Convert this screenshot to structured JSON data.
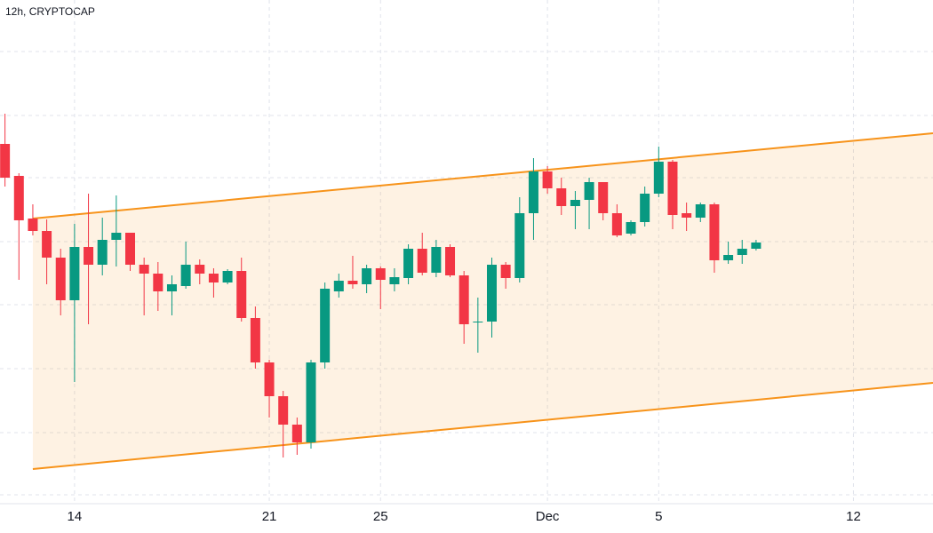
{
  "chart_data": {
    "type": "candlestick",
    "title": "12h, CRYPTOCAP",
    "x": [
      11.5,
      12,
      12.5,
      13,
      13.5,
      14,
      14.5,
      15,
      15.5,
      16,
      16.5,
      17,
      17.5,
      18,
      18.5,
      19,
      19.5,
      20,
      20.5,
      21,
      21.5,
      22,
      22.5,
      23,
      23.5,
      24,
      24.5,
      25,
      25.5,
      26,
      26.5,
      27,
      27.5,
      28,
      28.5,
      29,
      29.5,
      30,
      30.5,
      31,
      31.5,
      32,
      32.5,
      33,
      33.5,
      34,
      34.5,
      35,
      35.5,
      36,
      36.5,
      37,
      37.5,
      38,
      38.5
    ],
    "open": [
      438,
      402,
      354,
      340,
      310,
      262,
      322,
      302,
      330,
      338,
      302,
      292,
      272,
      278,
      302,
      292,
      282,
      295,
      242,
      192,
      154,
      122,
      102,
      192,
      272,
      284,
      280,
      298,
      280,
      287,
      320,
      293,
      322,
      290,
      237,
      238,
      302,
      287,
      360,
      407,
      388,
      368,
      375,
      395,
      360,
      337,
      350,
      382,
      418,
      360,
      355,
      370,
      307,
      313,
      320
    ],
    "high": [
      472,
      405,
      370,
      353,
      320,
      348,
      382,
      355,
      380,
      338,
      310,
      305,
      290,
      328,
      308,
      298,
      297,
      310,
      255,
      195,
      160,
      130,
      195,
      282,
      292,
      312,
      302,
      300,
      298,
      325,
      338,
      330,
      325,
      295,
      265,
      310,
      305,
      378,
      422,
      413,
      400,
      385,
      400,
      395,
      370,
      352,
      390,
      435,
      420,
      372,
      372,
      372,
      328,
      330,
      330
    ],
    "low": [
      390,
      285,
      335,
      280,
      245,
      170,
      235,
      290,
      300,
      295,
      245,
      250,
      245,
      275,
      280,
      265,
      280,
      238,
      185,
      130,
      85,
      88,
      95,
      185,
      265,
      275,
      270,
      252,
      272,
      280,
      290,
      288,
      288,
      213,
      203,
      220,
      275,
      282,
      330,
      382,
      358,
      342,
      342,
      352,
      333,
      335,
      345,
      378,
      342,
      340,
      350,
      293,
      303,
      303,
      318
    ],
    "close": [
      400,
      352,
      340,
      310,
      262,
      322,
      302,
      330,
      338,
      302,
      292,
      272,
      280,
      302,
      292,
      282,
      295,
      242,
      192,
      154,
      122,
      102,
      192,
      275,
      284,
      280,
      298,
      285,
      288,
      320,
      293,
      322,
      290,
      235,
      238,
      302,
      287,
      360,
      407,
      388,
      368,
      375,
      395,
      360,
      335,
      350,
      382,
      418,
      358,
      355,
      370,
      307,
      313,
      320,
      327
    ],
    "up_color": "#089981",
    "down_color": "#f23645",
    "channel": {
      "x": [
        12.5,
        44.86
      ],
      "upper": [
        354,
        450
      ],
      "lower": [
        72,
        169
      ],
      "color": "#f7931a"
    },
    "xlim": [
      11.32,
      44.86
    ],
    "ylim": [
      0,
      600
    ],
    "xticks": [
      14,
      21,
      25,
      {
        "value": 31,
        "label": "Dec"
      },
      {
        "value": 35,
        "label": "5"
      },
      {
        "value": 42,
        "label": "12"
      }
    ],
    "grid": true
  }
}
